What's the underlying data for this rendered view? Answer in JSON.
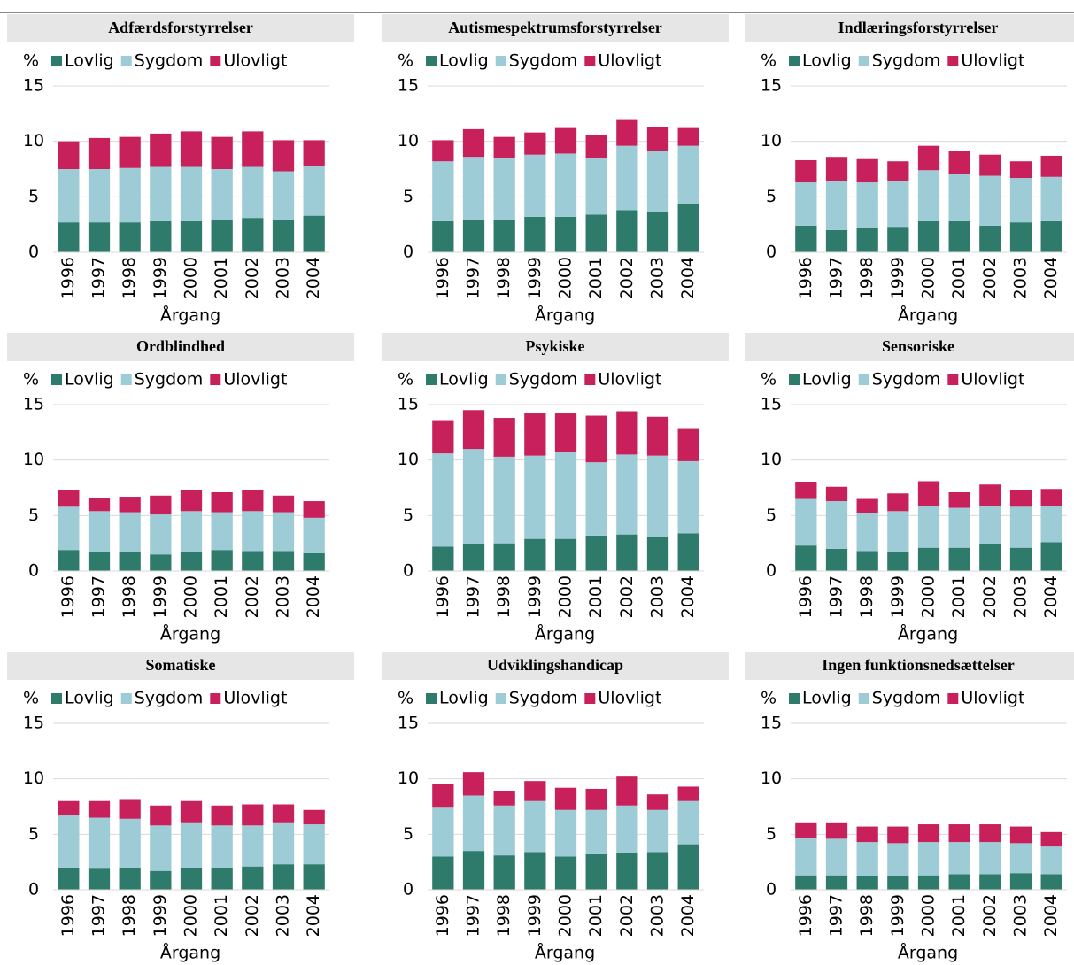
{
  "chart_data": [
    {
      "type": "bar",
      "stacked": true,
      "title": "Adfærdsforstyrrelser",
      "ylabel": "%",
      "xlabel": "Årgang",
      "categories": [
        "1996",
        "1997",
        "1998",
        "1999",
        "2000",
        "2001",
        "2002",
        "2003",
        "2004"
      ],
      "series": [
        {
          "name": "Lovlig",
          "color": "#2e7a6b",
          "values": [
            2.7,
            2.7,
            2.7,
            2.8,
            2.8,
            2.9,
            3.1,
            2.9,
            3.3
          ]
        },
        {
          "name": "Sygdom",
          "color": "#9dcbd6",
          "values": [
            4.8,
            4.8,
            4.9,
            4.9,
            4.9,
            4.6,
            4.6,
            4.4,
            4.5
          ]
        },
        {
          "name": "Ulovligt",
          "color": "#c8205a",
          "values": [
            2.5,
            2.8,
            2.8,
            3.0,
            3.2,
            2.9,
            3.2,
            2.8,
            2.3
          ]
        }
      ],
      "ylim": [
        0,
        15
      ],
      "yticks": [
        0,
        5,
        10,
        15
      ],
      "grid": true
    },
    {
      "type": "bar",
      "stacked": true,
      "title": "Autismespektrumsforstyrrelser",
      "ylabel": "%",
      "xlabel": "Årgang",
      "categories": [
        "1996",
        "1997",
        "1998",
        "1999",
        "2000",
        "2001",
        "2002",
        "2003",
        "2004"
      ],
      "series": [
        {
          "name": "Lovlig",
          "color": "#2e7a6b",
          "values": [
            2.8,
            2.9,
            2.9,
            3.2,
            3.2,
            3.4,
            3.8,
            3.6,
            4.4
          ]
        },
        {
          "name": "Sygdom",
          "color": "#9dcbd6",
          "values": [
            5.4,
            5.7,
            5.6,
            5.6,
            5.7,
            5.1,
            5.8,
            5.5,
            5.2
          ]
        },
        {
          "name": "Ulovligt",
          "color": "#c8205a",
          "values": [
            1.9,
            2.5,
            1.9,
            2.0,
            2.3,
            2.1,
            2.4,
            2.2,
            1.6
          ]
        }
      ],
      "ylim": [
        0,
        15
      ],
      "yticks": [
        0,
        5,
        10,
        15
      ],
      "grid": true
    },
    {
      "type": "bar",
      "stacked": true,
      "title": "Indlæringsforstyrrelser",
      "ylabel": "%",
      "xlabel": "Årgang",
      "categories": [
        "1996",
        "1997",
        "1998",
        "1999",
        "2000",
        "2001",
        "2002",
        "2003",
        "2004"
      ],
      "series": [
        {
          "name": "Lovlig",
          "color": "#2e7a6b",
          "values": [
            2.4,
            2.0,
            2.2,
            2.3,
            2.8,
            2.8,
            2.4,
            2.7,
            2.8
          ]
        },
        {
          "name": "Sygdom",
          "color": "#9dcbd6",
          "values": [
            3.9,
            4.4,
            4.1,
            4.1,
            4.6,
            4.3,
            4.5,
            4.0,
            4.0
          ]
        },
        {
          "name": "Ulovligt",
          "color": "#c8205a",
          "values": [
            2.0,
            2.2,
            2.1,
            1.8,
            2.2,
            2.0,
            1.9,
            1.5,
            1.9
          ]
        }
      ],
      "ylim": [
        0,
        15
      ],
      "yticks": [
        0,
        5,
        10,
        15
      ],
      "grid": true
    },
    {
      "type": "bar",
      "stacked": true,
      "title": "Ordblindhed",
      "ylabel": "%",
      "xlabel": "Årgang",
      "categories": [
        "1996",
        "1997",
        "1998",
        "1999",
        "2000",
        "2001",
        "2002",
        "2003",
        "2004"
      ],
      "series": [
        {
          "name": "Lovlig",
          "color": "#2e7a6b",
          "values": [
            1.9,
            1.7,
            1.7,
            1.5,
            1.7,
            1.9,
            1.8,
            1.8,
            1.6
          ]
        },
        {
          "name": "Sygdom",
          "color": "#9dcbd6",
          "values": [
            3.9,
            3.7,
            3.6,
            3.6,
            3.7,
            3.4,
            3.6,
            3.5,
            3.2
          ]
        },
        {
          "name": "Ulovligt",
          "color": "#c8205a",
          "values": [
            1.5,
            1.2,
            1.4,
            1.7,
            1.9,
            1.8,
            1.9,
            1.5,
            1.5
          ]
        }
      ],
      "ylim": [
        0,
        15
      ],
      "yticks": [
        0,
        5,
        10,
        15
      ],
      "grid": true
    },
    {
      "type": "bar",
      "stacked": true,
      "title": "Psykiske",
      "ylabel": "%",
      "xlabel": "Årgang",
      "categories": [
        "1996",
        "1997",
        "1998",
        "1999",
        "2000",
        "2001",
        "2002",
        "2003",
        "2004"
      ],
      "series": [
        {
          "name": "Lovlig",
          "color": "#2e7a6b",
          "values": [
            2.2,
            2.4,
            2.5,
            2.9,
            2.9,
            3.2,
            3.3,
            3.1,
            3.4
          ]
        },
        {
          "name": "Sygdom",
          "color": "#9dcbd6",
          "values": [
            8.4,
            8.6,
            7.8,
            7.5,
            7.8,
            6.6,
            7.2,
            7.3,
            6.5
          ]
        },
        {
          "name": "Ulovligt",
          "color": "#c8205a",
          "values": [
            3.0,
            3.5,
            3.5,
            3.8,
            3.5,
            4.2,
            3.9,
            3.5,
            2.9
          ]
        }
      ],
      "ylim": [
        0,
        15
      ],
      "yticks": [
        0,
        5,
        10,
        15
      ],
      "grid": true
    },
    {
      "type": "bar",
      "stacked": true,
      "title": "Sensoriske",
      "ylabel": "%",
      "xlabel": "Årgang",
      "categories": [
        "1996",
        "1997",
        "1998",
        "1999",
        "2000",
        "2001",
        "2002",
        "2003",
        "2004"
      ],
      "series": [
        {
          "name": "Lovlig",
          "color": "#2e7a6b",
          "values": [
            2.3,
            2.0,
            1.8,
            1.7,
            2.1,
            2.1,
            2.4,
            2.1,
            2.6
          ]
        },
        {
          "name": "Sygdom",
          "color": "#9dcbd6",
          "values": [
            4.2,
            4.3,
            3.4,
            3.7,
            3.8,
            3.6,
            3.5,
            3.7,
            3.3
          ]
        },
        {
          "name": "Ulovligt",
          "color": "#c8205a",
          "values": [
            1.5,
            1.3,
            1.3,
            1.6,
            2.2,
            1.4,
            1.9,
            1.5,
            1.5
          ]
        }
      ],
      "ylim": [
        0,
        15
      ],
      "yticks": [
        0,
        5,
        10,
        15
      ],
      "grid": true
    },
    {
      "type": "bar",
      "stacked": true,
      "title": "Somatiske",
      "ylabel": "%",
      "xlabel": "Årgang",
      "categories": [
        "1996",
        "1997",
        "1998",
        "1999",
        "2000",
        "2001",
        "2002",
        "2003",
        "2004"
      ],
      "series": [
        {
          "name": "Lovlig",
          "color": "#2e7a6b",
          "values": [
            2.0,
            1.9,
            2.0,
            1.7,
            2.0,
            2.0,
            2.1,
            2.3,
            2.3
          ]
        },
        {
          "name": "Sygdom",
          "color": "#9dcbd6",
          "values": [
            4.7,
            4.6,
            4.4,
            4.1,
            4.0,
            3.8,
            3.7,
            3.7,
            3.6
          ]
        },
        {
          "name": "Ulovligt",
          "color": "#c8205a",
          "values": [
            1.3,
            1.5,
            1.7,
            1.8,
            2.0,
            1.8,
            1.9,
            1.7,
            1.3
          ]
        }
      ],
      "ylim": [
        0,
        15
      ],
      "yticks": [
        0,
        5,
        10,
        15
      ],
      "grid": true
    },
    {
      "type": "bar",
      "stacked": true,
      "title": "Udviklingshandicap",
      "ylabel": "%",
      "xlabel": "Årgang",
      "categories": [
        "1996",
        "1997",
        "1998",
        "1999",
        "2000",
        "2001",
        "2002",
        "2003",
        "2004"
      ],
      "series": [
        {
          "name": "Lovlig",
          "color": "#2e7a6b",
          "values": [
            3.0,
            3.5,
            3.1,
            3.4,
            3.0,
            3.2,
            3.3,
            3.4,
            4.1
          ]
        },
        {
          "name": "Sygdom",
          "color": "#9dcbd6",
          "values": [
            4.4,
            5.0,
            4.5,
            4.6,
            4.2,
            4.0,
            4.3,
            3.8,
            3.9
          ]
        },
        {
          "name": "Ulovligt",
          "color": "#c8205a",
          "values": [
            2.1,
            2.1,
            1.3,
            1.8,
            2.0,
            1.9,
            2.6,
            1.4,
            1.3
          ]
        }
      ],
      "ylim": [
        0,
        15
      ],
      "yticks": [
        0,
        5,
        10,
        15
      ],
      "grid": true
    },
    {
      "type": "bar",
      "stacked": true,
      "title": "Ingen funktionsnedsættelser",
      "ylabel": "%",
      "xlabel": "Årgang",
      "categories": [
        "1996",
        "1997",
        "1998",
        "1999",
        "2000",
        "2001",
        "2002",
        "2003",
        "2004"
      ],
      "series": [
        {
          "name": "Lovlig",
          "color": "#2e7a6b",
          "values": [
            1.3,
            1.3,
            1.2,
            1.2,
            1.3,
            1.4,
            1.4,
            1.5,
            1.4
          ]
        },
        {
          "name": "Sygdom",
          "color": "#9dcbd6",
          "values": [
            3.4,
            3.3,
            3.1,
            3.0,
            3.0,
            2.9,
            2.9,
            2.7,
            2.5
          ]
        },
        {
          "name": "Ulovligt",
          "color": "#c8205a",
          "values": [
            1.3,
            1.4,
            1.4,
            1.5,
            1.6,
            1.6,
            1.6,
            1.5,
            1.3
          ]
        }
      ],
      "ylim": [
        0,
        15
      ],
      "yticks": [
        0,
        5,
        10,
        15
      ],
      "grid": true
    }
  ]
}
